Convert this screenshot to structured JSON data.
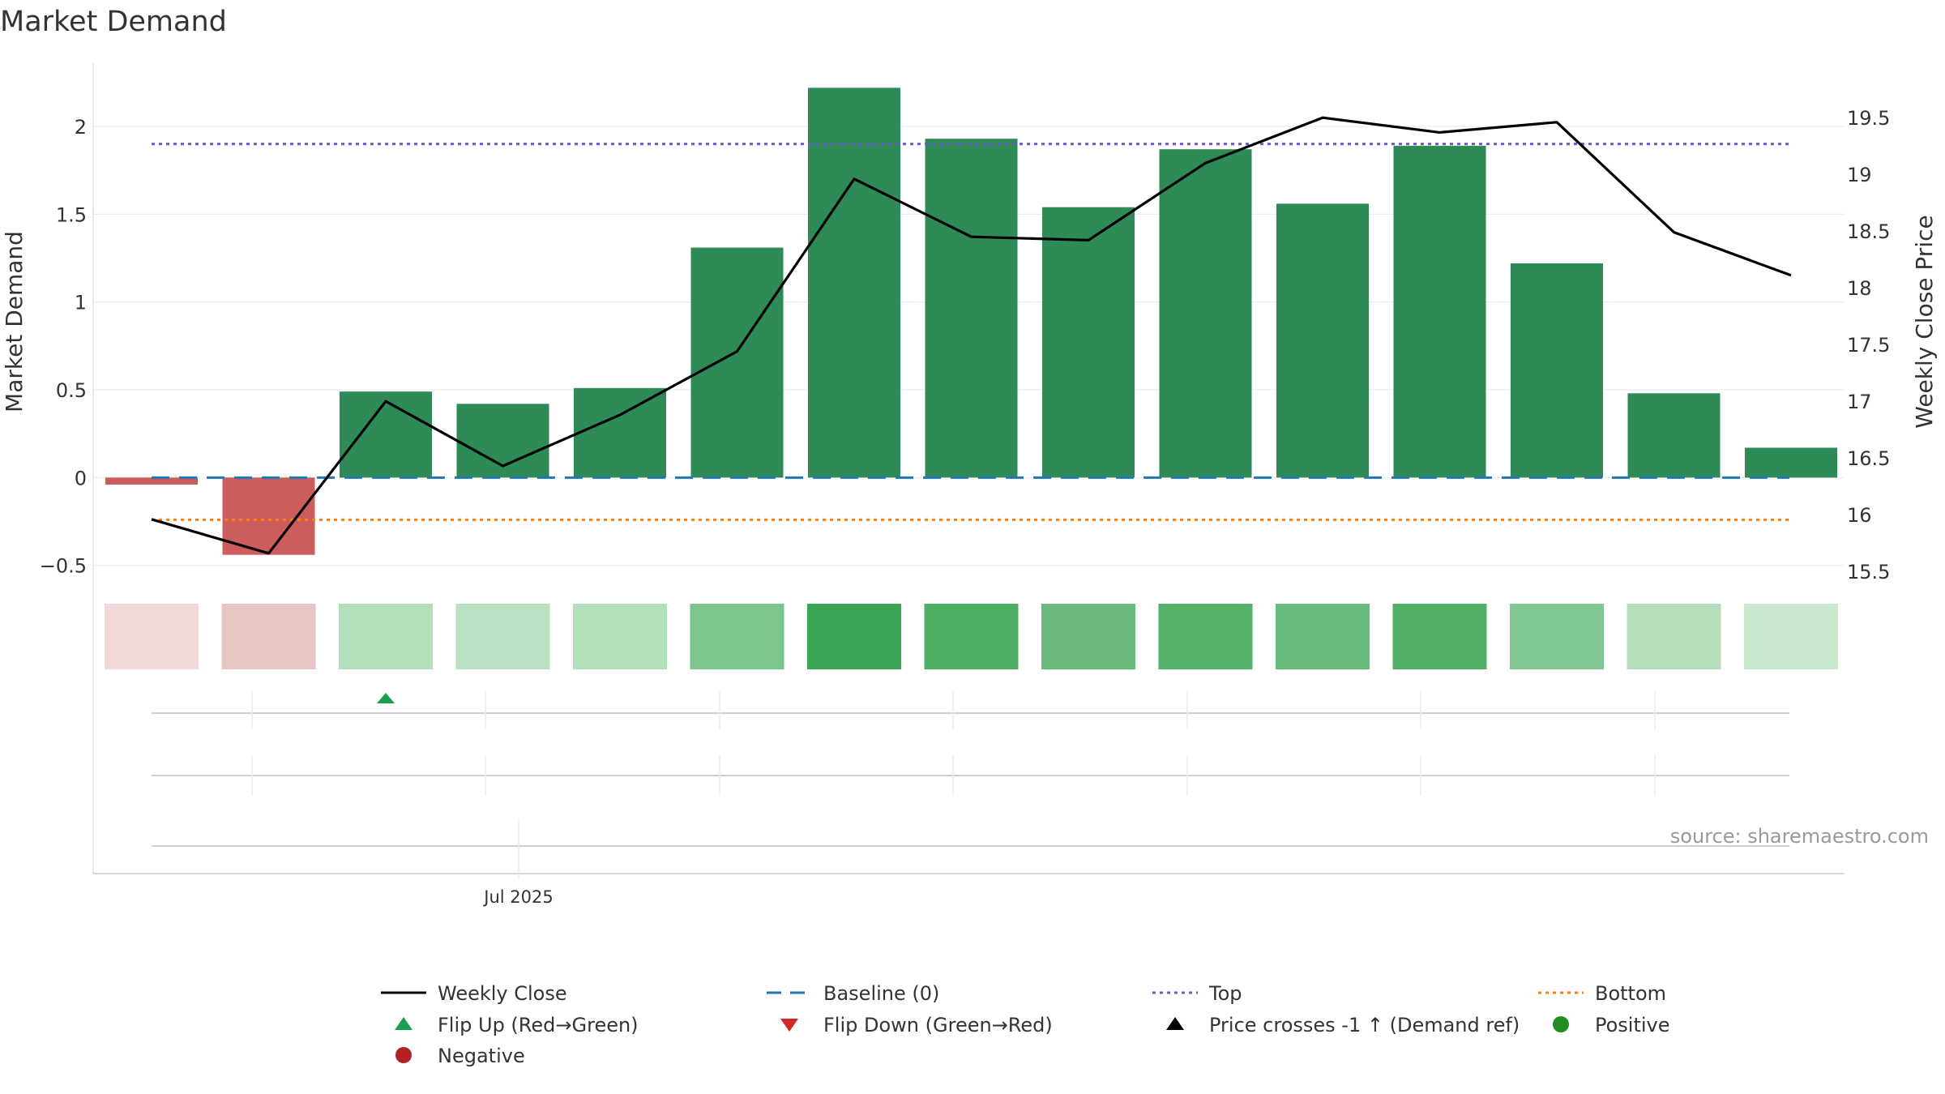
{
  "title": "Market Demand",
  "source": "source: sharemaestro.com",
  "chart_data": {
    "type": "bar",
    "title": "Market Demand",
    "ylabel": "Market Demand",
    "y2label": "Weekly Close Price",
    "ylim": [
      -0.58,
      2.36
    ],
    "y2lim": [
      15.43,
      19.98
    ],
    "yticks": [
      -0.5,
      0,
      0.5,
      1,
      1.5,
      2
    ],
    "yticklabels": [
      "−0.5",
      "0",
      "0.5",
      "1",
      "1.5",
      "2"
    ],
    "y2ticks": [
      15.5,
      16,
      16.5,
      17,
      17.5,
      18,
      18.5,
      19,
      19.5
    ],
    "y2ticklabels": [
      "15.5",
      "16",
      "16.5",
      "17",
      "17.5",
      "18",
      "18.5",
      "19",
      "19.5"
    ],
    "xtick_label": "Jul 2025",
    "series": [
      {
        "name": "Market Demand",
        "kind": "bar",
        "values": [
          -0.04,
          -0.44,
          0.49,
          0.42,
          0.51,
          1.31,
          2.22,
          1.93,
          1.54,
          1.87,
          1.56,
          1.89,
          1.22,
          0.48,
          0.17
        ]
      },
      {
        "name": "Weekly Close",
        "kind": "line",
        "color": "#000000",
        "values": [
          15.96,
          15.66,
          17.0,
          16.43,
          16.88,
          17.44,
          18.96,
          18.45,
          18.42,
          19.1,
          19.5,
          19.37,
          19.46,
          18.49,
          18.11
        ]
      }
    ],
    "baseline": {
      "name": "Baseline (0)",
      "value": 0,
      "color": "#1f77b4"
    },
    "top": {
      "name": "Top",
      "value": 1.9,
      "color": "#6a5acd"
    },
    "bottom": {
      "name": "Bottom",
      "value": -0.24,
      "color": "#ff7f0e"
    },
    "heat_strip": [
      "#f2d9d9",
      "#e8c4c2",
      "#b2dfbb",
      "#b8e0c1",
      "#b1dfba",
      "#7cc58c",
      "#3aa655",
      "#4eb063",
      "#6aba7b",
      "#55b168",
      "#69bb7b",
      "#52b066",
      "#80c690",
      "#b4ddbc",
      "#c8e7cd"
    ],
    "flip_up_index": 2,
    "colors": {
      "positive_bar": "#2e8b57",
      "negative_bar": "#cd5c5c",
      "flip_up": "#1a9e50",
      "flip_down": "#d62728",
      "price_cross": "#000000",
      "positive_dot": "#228b22",
      "negative_dot": "#b22222"
    },
    "legend": [
      {
        "label": "Weekly Close",
        "symbol": "line-solid",
        "color": "#000000"
      },
      {
        "label": "Baseline (0)",
        "symbol": "line-dash",
        "color": "#1f77b4"
      },
      {
        "label": "Top",
        "symbol": "line-dot",
        "color": "#6a5acd"
      },
      {
        "label": "Bottom",
        "symbol": "line-dot",
        "color": "#ff7f0e"
      },
      {
        "label": "Flip Up (Red→Green)",
        "symbol": "triangle-up",
        "color": "#1a9e50"
      },
      {
        "label": "Flip Down (Green→Red)",
        "symbol": "triangle-down",
        "color": "#d62728"
      },
      {
        "label": "Price crosses -1 ↑ (Demand ref)",
        "symbol": "triangle-up",
        "color": "#000000"
      },
      {
        "label": "Positive",
        "symbol": "circle",
        "color": "#228b22"
      },
      {
        "label": "Negative",
        "symbol": "circle",
        "color": "#b22222"
      }
    ]
  }
}
